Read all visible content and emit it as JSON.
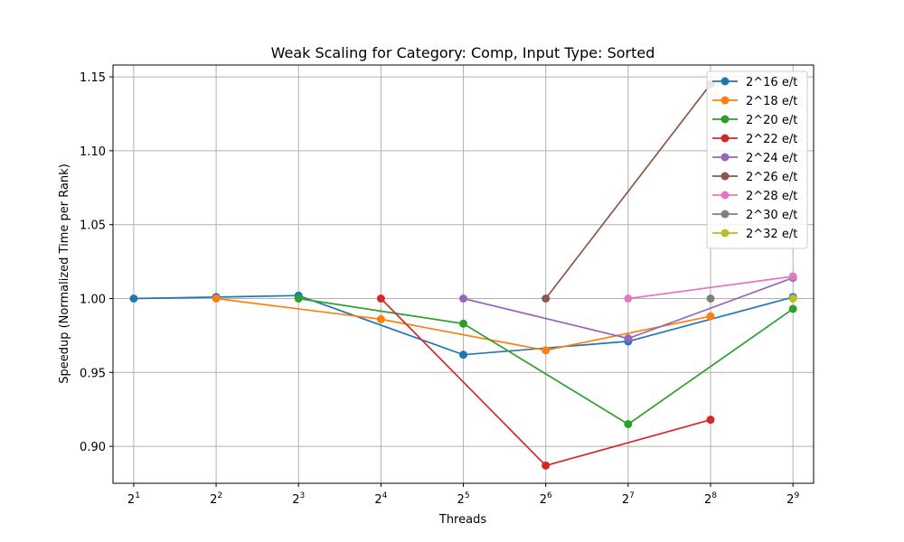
{
  "chart_data": {
    "type": "line",
    "title": "Weak Scaling for Category: Comp, Input Type: Sorted",
    "xlabel": "Threads",
    "ylabel": "Speedup (Normalized Time per Rank)",
    "x_scale": "log2",
    "x_ticks": [
      {
        "base": "2",
        "exp": "1",
        "value": 2
      },
      {
        "base": "2",
        "exp": "2",
        "value": 4
      },
      {
        "base": "2",
        "exp": "3",
        "value": 8
      },
      {
        "base": "2",
        "exp": "4",
        "value": 16
      },
      {
        "base": "2",
        "exp": "5",
        "value": 32
      },
      {
        "base": "2",
        "exp": "6",
        "value": 64
      },
      {
        "base": "2",
        "exp": "7",
        "value": 128
      },
      {
        "base": "2",
        "exp": "8",
        "value": 256
      },
      {
        "base": "2",
        "exp": "9",
        "value": 512
      }
    ],
    "y_ticks": [
      {
        "label": "0.90",
        "value": 0.9
      },
      {
        "label": "0.95",
        "value": 0.95
      },
      {
        "label": "1.00",
        "value": 1.0
      },
      {
        "label": "1.05",
        "value": 1.05
      },
      {
        "label": "1.10",
        "value": 1.1
      },
      {
        "label": "1.15",
        "value": 1.15
      }
    ],
    "xlim": [
      1.68,
      609
    ],
    "ylim": [
      0.875,
      1.158
    ],
    "grid": true,
    "legend_position": "top-right",
    "series": [
      {
        "name": "2^16 e/t",
        "color": "#1f77b4",
        "points": [
          [
            2,
            1.0
          ],
          [
            4,
            1.001
          ],
          [
            8,
            1.002
          ],
          [
            32,
            0.962
          ],
          [
            128,
            0.971
          ],
          [
            512,
            1.001
          ]
        ]
      },
      {
        "name": "2^18 e/t",
        "color": "#ff7f0e",
        "points": [
          [
            4,
            1.0
          ],
          [
            16,
            0.986
          ],
          [
            64,
            0.965
          ],
          [
            256,
            0.988
          ]
        ]
      },
      {
        "name": "2^20 e/t",
        "color": "#2ca02c",
        "points": [
          [
            8,
            1.0
          ],
          [
            32,
            0.983
          ],
          [
            128,
            0.915
          ],
          [
            512,
            0.993
          ]
        ]
      },
      {
        "name": "2^22 e/t",
        "color": "#d62728",
        "points": [
          [
            16,
            1.0
          ],
          [
            64,
            0.887
          ],
          [
            256,
            0.918
          ]
        ]
      },
      {
        "name": "2^24 e/t",
        "color": "#9467bd",
        "points": [
          [
            32,
            1.0
          ],
          [
            128,
            0.973
          ],
          [
            512,
            1.014
          ]
        ]
      },
      {
        "name": "2^26 e/t",
        "color": "#8c564b",
        "points": [
          [
            64,
            1.0
          ],
          [
            256,
            1.145
          ]
        ]
      },
      {
        "name": "2^28 e/t",
        "color": "#e377c2",
        "points": [
          [
            128,
            1.0
          ],
          [
            512,
            1.015
          ]
        ]
      },
      {
        "name": "2^30 e/t",
        "color": "#7f7f7f",
        "points": [
          [
            256,
            1.0
          ]
        ]
      },
      {
        "name": "2^32 e/t",
        "color": "#bcbd22",
        "points": [
          [
            512,
            1.0
          ]
        ]
      }
    ]
  }
}
